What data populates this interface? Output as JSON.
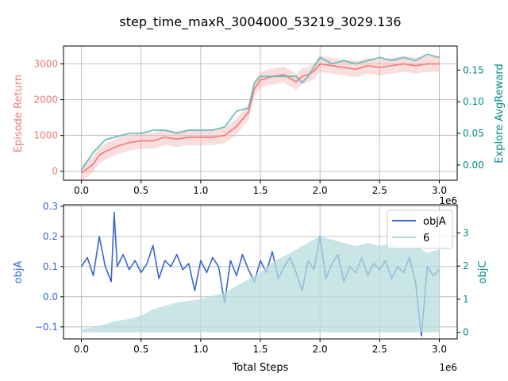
{
  "figure": {
    "title": "step_time_maxR_3004000_53219_3029.136"
  },
  "colors": {
    "return": "#f07878",
    "return_band": "#f4b4b4",
    "explore": "#5fb8b8",
    "explore_axis": "#008b8b",
    "objA": "#3a66d4",
    "objC_fill": "#b7dcdc",
    "grid": "#b0b0b0",
    "axis": "#000000"
  },
  "chart_data": [
    {
      "type": "line",
      "panel": "top",
      "xlim": [
        -150000,
        3150000
      ],
      "x_ticks": [
        0,
        500000,
        1000000,
        1500000,
        2000000,
        2500000,
        3000000
      ],
      "x_tick_labels": [
        "0.0",
        "0.5",
        "1.0",
        "1.5",
        "2.0",
        "2.5",
        "3.0"
      ],
      "x_offset_label": "1e6",
      "grid": true,
      "y_left": {
        "label": "Episode Return",
        "ylim": [
          -250,
          3500
        ],
        "ticks": [
          0,
          1000,
          2000,
          3000
        ],
        "tick_labels": [
          "0",
          "1000",
          "2000",
          "3000"
        ]
      },
      "y_right": {
        "label": "Explore AvgReward",
        "ylim": [
          -0.024,
          0.188
        ],
        "ticks": [
          0.0,
          0.05,
          0.1,
          0.15
        ],
        "tick_labels": [
          "0.00",
          "0.05",
          "0.10",
          "0.15"
        ]
      },
      "series": [
        {
          "axis": "left",
          "x": [
            0,
            100000,
            150000,
            200000,
            300000,
            400000,
            500000,
            600000,
            700000,
            800000,
            900000,
            1000000,
            1100000,
            1200000,
            1300000,
            1400000,
            1450000,
            1500000,
            1550000,
            1600000,
            1700000,
            1750000,
            1800000,
            1850000,
            1900000,
            1950000,
            2000000,
            2100000,
            2200000,
            2300000,
            2400000,
            2500000,
            2600000,
            2700000,
            2800000,
            2900000,
            3000000
          ],
          "values": [
            -50,
            200,
            450,
            550,
            700,
            800,
            850,
            850,
            950,
            900,
            950,
            950,
            950,
            1000,
            1250,
            1650,
            2300,
            2550,
            2600,
            2650,
            2700,
            2600,
            2500,
            2650,
            2700,
            2800,
            3000,
            2950,
            2900,
            2850,
            2950,
            2900,
            2950,
            3000,
            2950,
            3000,
            3000
          ]
        },
        {
          "axis": "right",
          "x": [
            0,
            100000,
            200000,
            300000,
            400000,
            500000,
            600000,
            700000,
            800000,
            900000,
            1000000,
            1100000,
            1200000,
            1300000,
            1400000,
            1450000,
            1500000,
            1600000,
            1700000,
            1800000,
            1850000,
            1900000,
            2000000,
            2100000,
            2200000,
            2300000,
            2400000,
            2500000,
            2600000,
            2700000,
            2800000,
            2900000,
            3000000
          ],
          "values": [
            -0.008,
            0.02,
            0.04,
            0.045,
            0.05,
            0.05,
            0.055,
            0.055,
            0.05,
            0.055,
            0.055,
            0.055,
            0.06,
            0.085,
            0.09,
            0.13,
            0.14,
            0.14,
            0.14,
            0.14,
            0.13,
            0.14,
            0.17,
            0.16,
            0.165,
            0.16,
            0.165,
            0.17,
            0.165,
            0.17,
            0.165,
            0.175,
            0.17
          ]
        }
      ]
    },
    {
      "type": "line",
      "panel": "bottom",
      "xlim": [
        -150000,
        3150000
      ],
      "x_ticks": [
        0,
        500000,
        1000000,
        1500000,
        2000000,
        2500000,
        3000000
      ],
      "x_tick_labels": [
        "0.0",
        "0.5",
        "1.0",
        "1.5",
        "2.0",
        "2.5",
        "3.0"
      ],
      "xlabel": "Total Steps",
      "x_offset_label": "1e6",
      "grid": true,
      "legend": {
        "position": "top-right",
        "entries": [
          "objA",
          "6"
        ]
      },
      "y_left": {
        "label": "objA",
        "ylim": [
          -0.14,
          0.305
        ],
        "ticks": [
          -0.1,
          0.0,
          0.1,
          0.2,
          0.3
        ],
        "tick_labels": [
          "−0.1",
          "0.0",
          "0.1",
          "0.2",
          "0.3"
        ]
      },
      "y_right": {
        "label": "objC",
        "ylim": [
          -0.2,
          3.85
        ],
        "ticks": [
          0,
          1,
          2,
          3
        ],
        "tick_labels": [
          "0",
          "1",
          "2",
          "3"
        ]
      },
      "series": [
        {
          "name": "objA",
          "axis": "left",
          "x": [
            0,
            50000,
            100000,
            150000,
            200000,
            250000,
            275000,
            300000,
            350000,
            400000,
            450000,
            500000,
            550000,
            600000,
            650000,
            700000,
            750000,
            800000,
            850000,
            900000,
            950000,
            1000000,
            1050000,
            1100000,
            1150000,
            1200000,
            1250000,
            1300000,
            1350000,
            1400000,
            1450000,
            1500000,
            1550000,
            1600000,
            1650000,
            1700000,
            1750000,
            1800000,
            1850000,
            1900000,
            1950000,
            2000000,
            2050000,
            2100000,
            2150000,
            2200000,
            2250000,
            2300000,
            2350000,
            2400000,
            2450000,
            2500000,
            2550000,
            2600000,
            2650000,
            2700000,
            2750000,
            2800000,
            2850000,
            2900000,
            2950000,
            3000000
          ],
          "values": [
            0.1,
            0.13,
            0.07,
            0.2,
            0.1,
            0.05,
            0.28,
            0.1,
            0.14,
            0.09,
            0.12,
            0.08,
            0.11,
            0.17,
            0.06,
            0.12,
            0.1,
            0.14,
            0.09,
            0.11,
            0.02,
            0.12,
            0.08,
            0.13,
            0.1,
            -0.02,
            0.12,
            0.07,
            0.14,
            0.09,
            0.05,
            0.12,
            0.08,
            0.15,
            0.06,
            0.1,
            0.13,
            0.08,
            0.02,
            0.12,
            0.09,
            0.2,
            0.06,
            0.11,
            0.14,
            0.05,
            0.1,
            0.08,
            0.13,
            0.07,
            0.11,
            0.09,
            0.12,
            0.06,
            0.1,
            0.08,
            0.13,
            0.05,
            -0.13,
            0.1,
            0.07,
            0.09
          ]
        },
        {
          "name": "6",
          "axis": "right",
          "style": "filled-band",
          "x": [
            0,
            100000,
            200000,
            300000,
            400000,
            500000,
            600000,
            700000,
            800000,
            900000,
            1000000,
            1100000,
            1200000,
            1300000,
            1400000,
            1500000,
            1600000,
            1700000,
            1800000,
            1900000,
            2000000,
            2100000,
            2200000,
            2300000,
            2400000,
            2500000,
            2600000,
            2700000,
            2800000,
            2900000,
            3000000
          ],
          "values": [
            0.1,
            0.15,
            0.25,
            0.35,
            0.4,
            0.5,
            0.7,
            0.8,
            0.9,
            0.95,
            1.0,
            1.1,
            1.2,
            1.4,
            1.6,
            1.8,
            2.1,
            2.3,
            2.5,
            2.7,
            2.9,
            2.8,
            2.7,
            2.6,
            2.7,
            2.6,
            2.7,
            2.5,
            2.6,
            2.4,
            2.5
          ]
        }
      ]
    }
  ]
}
